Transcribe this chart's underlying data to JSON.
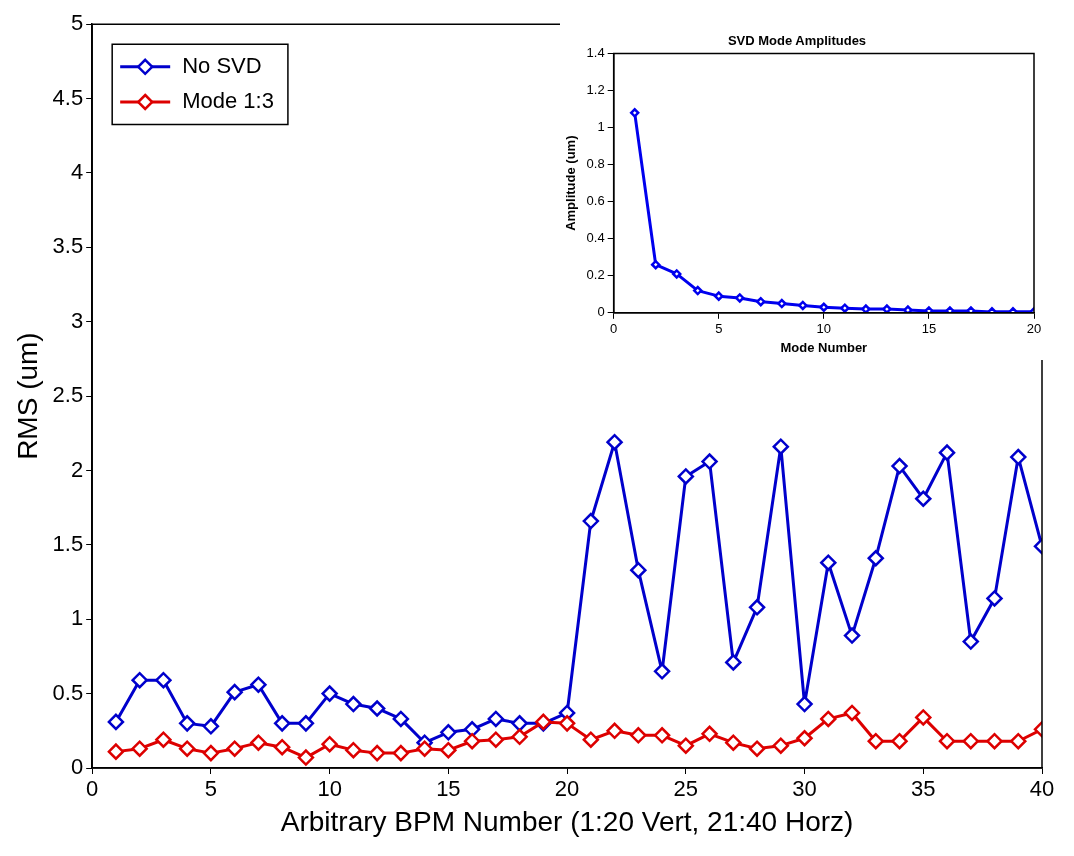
{
  "chart_data": [
    {
      "type": "line",
      "xlabel": "Arbitrary BPM Number (1:20 Vert, 21:40 Horz)",
      "ylabel": "RMS (um)",
      "x": [
        1,
        2,
        3,
        4,
        5,
        6,
        7,
        8,
        9,
        10,
        11,
        12,
        13,
        14,
        15,
        16,
        17,
        18,
        19,
        20,
        21,
        22,
        23,
        24,
        25,
        26,
        27,
        28,
        29,
        30,
        31,
        32,
        33,
        34,
        35,
        36,
        37,
        38,
        39,
        40
      ],
      "series": [
        {
          "name": "No SVD",
          "color": "#0000cc",
          "values": [
            0.31,
            0.59,
            0.59,
            0.3,
            0.28,
            0.51,
            0.56,
            0.3,
            0.3,
            0.5,
            0.43,
            0.4,
            0.33,
            0.17,
            0.24,
            0.26,
            0.33,
            0.3,
            0.3,
            0.37,
            1.66,
            2.19,
            1.33,
            0.65,
            1.96,
            2.06,
            0.71,
            1.08,
            2.16,
            0.43,
            1.38,
            0.89,
            1.41,
            2.03,
            1.81,
            2.12,
            0.85,
            1.14,
            2.09,
            1.49
          ]
        },
        {
          "name": "Mode 1:3",
          "color": "#dd0000",
          "values": [
            0.11,
            0.13,
            0.19,
            0.13,
            0.1,
            0.13,
            0.17,
            0.14,
            0.07,
            0.16,
            0.12,
            0.1,
            0.1,
            0.13,
            0.12,
            0.18,
            0.19,
            0.21,
            0.31,
            0.3,
            0.19,
            0.25,
            0.22,
            0.22,
            0.15,
            0.23,
            0.17,
            0.13,
            0.15,
            0.2,
            0.33,
            0.37,
            0.18,
            0.18,
            0.34,
            0.18,
            0.18,
            0.18,
            0.18,
            0.26
          ]
        }
      ],
      "xlim": [
        0,
        40
      ],
      "xticks": [
        0,
        5,
        10,
        15,
        20,
        25,
        30,
        35,
        40
      ],
      "ylim": [
        0,
        5
      ],
      "yticks": [
        0,
        0.5,
        1,
        1.5,
        2,
        2.5,
        3,
        3.5,
        4,
        4.5,
        5
      ],
      "grid": false,
      "legend": "top left",
      "marker": "diamond",
      "line_style": "solid"
    },
    {
      "type": "line",
      "title": "SVD Mode Amplitudes",
      "xlabel": "Mode Number",
      "ylabel": "Amplitude (um)",
      "x": [
        1,
        2,
        3,
        4,
        5,
        6,
        7,
        8,
        9,
        10,
        11,
        12,
        13,
        14,
        15,
        16,
        17,
        18,
        19,
        20
      ],
      "series": [
        {
          "color": "#0000ee",
          "values": [
            1.08,
            0.26,
            0.21,
            0.12,
            0.09,
            0.08,
            0.06,
            0.05,
            0.04,
            0.03,
            0.025,
            0.02,
            0.02,
            0.015,
            0.01,
            0.01,
            0.01,
            0.005,
            0.005,
            0.005
          ]
        }
      ],
      "xlim": [
        0,
        20
      ],
      "xticks": [
        0,
        5,
        10,
        15,
        20
      ],
      "ylim": [
        0,
        1.4
      ],
      "yticks": [
        0,
        0.2,
        0.4,
        0.6,
        0.8,
        1,
        1.2,
        1.4
      ],
      "grid": false,
      "legend": false,
      "marker": "diamond",
      "line_style": "solid"
    }
  ]
}
